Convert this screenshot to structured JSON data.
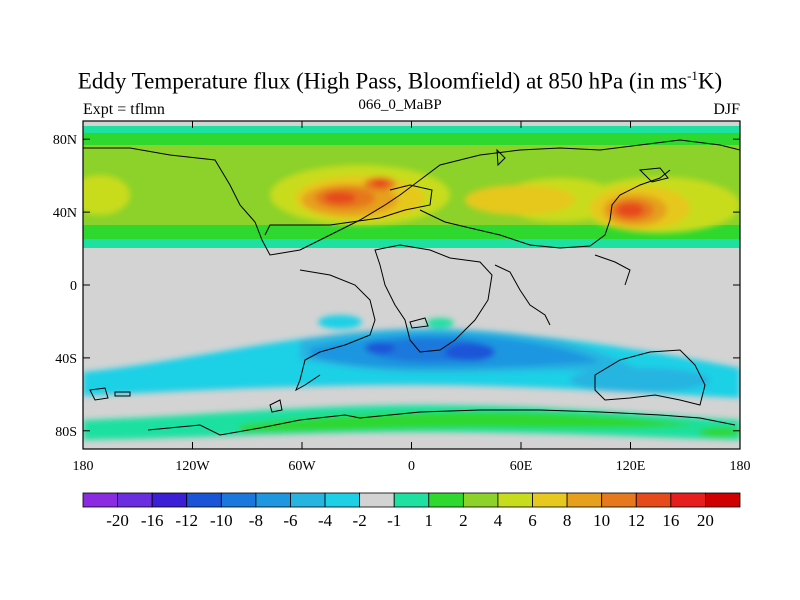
{
  "title": {
    "main_prefix": "Eddy Temperature flux (High Pass, Bloomfield) at 850 hPa (in ms",
    "superscript": "-1",
    "main_suffix": "K)",
    "expt": "Expt = tflmn",
    "run": "066_0_MaBP",
    "season": "DJF"
  },
  "map": {
    "lon_range": [
      -180,
      180
    ],
    "lat_range": [
      -90,
      90
    ],
    "x_ticks": [
      {
        "value": -180,
        "label": "180"
      },
      {
        "value": -120,
        "label": "120W"
      },
      {
        "value": -60,
        "label": "60W"
      },
      {
        "value": 0,
        "label": "0"
      },
      {
        "value": 60,
        "label": "60E"
      },
      {
        "value": 120,
        "label": "120E"
      },
      {
        "value": 180,
        "label": "180"
      }
    ],
    "y_ticks": [
      {
        "value": 80,
        "label": "80N"
      },
      {
        "value": 40,
        "label": "40N"
      },
      {
        "value": 0,
        "label": "0"
      },
      {
        "value": -40,
        "label": "40S"
      },
      {
        "value": -80,
        "label": "80S"
      }
    ]
  },
  "colorbar": {
    "colors": [
      "#8a2be2",
      "#6a2ee0",
      "#3a1fd6",
      "#1a55d8",
      "#1a78dc",
      "#1e96e0",
      "#28b4e0",
      "#1ed0e6",
      "#d3d3d3",
      "#1ee0a0",
      "#2ed82e",
      "#8cd22a",
      "#c8dc1e",
      "#e6c81e",
      "#e6a01e",
      "#e6781e",
      "#e64a1a",
      "#e61e1e",
      "#d00000"
    ],
    "labels": [
      "-20",
      "-16",
      "-12",
      "-10",
      "-8",
      "-6",
      "-4",
      "-2",
      "-1",
      "1",
      "2",
      "4",
      "6",
      "8",
      "10",
      "12",
      "16",
      "20"
    ]
  },
  "chart_data": {
    "type": "heatmap",
    "title": "Eddy Temperature flux (High Pass, Bloomfield) at 850 hPa (in ms-1K)",
    "subtitle": "066_0_MaBP",
    "experiment": "tflmn",
    "season": "DJF",
    "x_axis": "longitude",
    "y_axis": "latitude",
    "levels": [
      -20,
      -16,
      -12,
      -10,
      -8,
      -6,
      -4,
      -2,
      -1,
      1,
      2,
      4,
      6,
      8,
      10,
      12,
      16,
      20
    ],
    "features": [
      {
        "name": "North Atlantic storm track maximum",
        "lon": [
          -50,
          -10
        ],
        "lat": [
          35,
          50
        ],
        "value_range": [
          12,
          16
        ]
      },
      {
        "name": "North Pacific storm track maximum",
        "lon": [
          100,
          140
        ],
        "lat": [
          30,
          45
        ],
        "value_range": [
          12,
          16
        ]
      },
      {
        "name": "Southern Hemisphere storm track minimum",
        "lon": [
          -40,
          60
        ],
        "lat": [
          -45,
          -25
        ],
        "value_range": [
          -10,
          -8
        ]
      }
    ]
  }
}
